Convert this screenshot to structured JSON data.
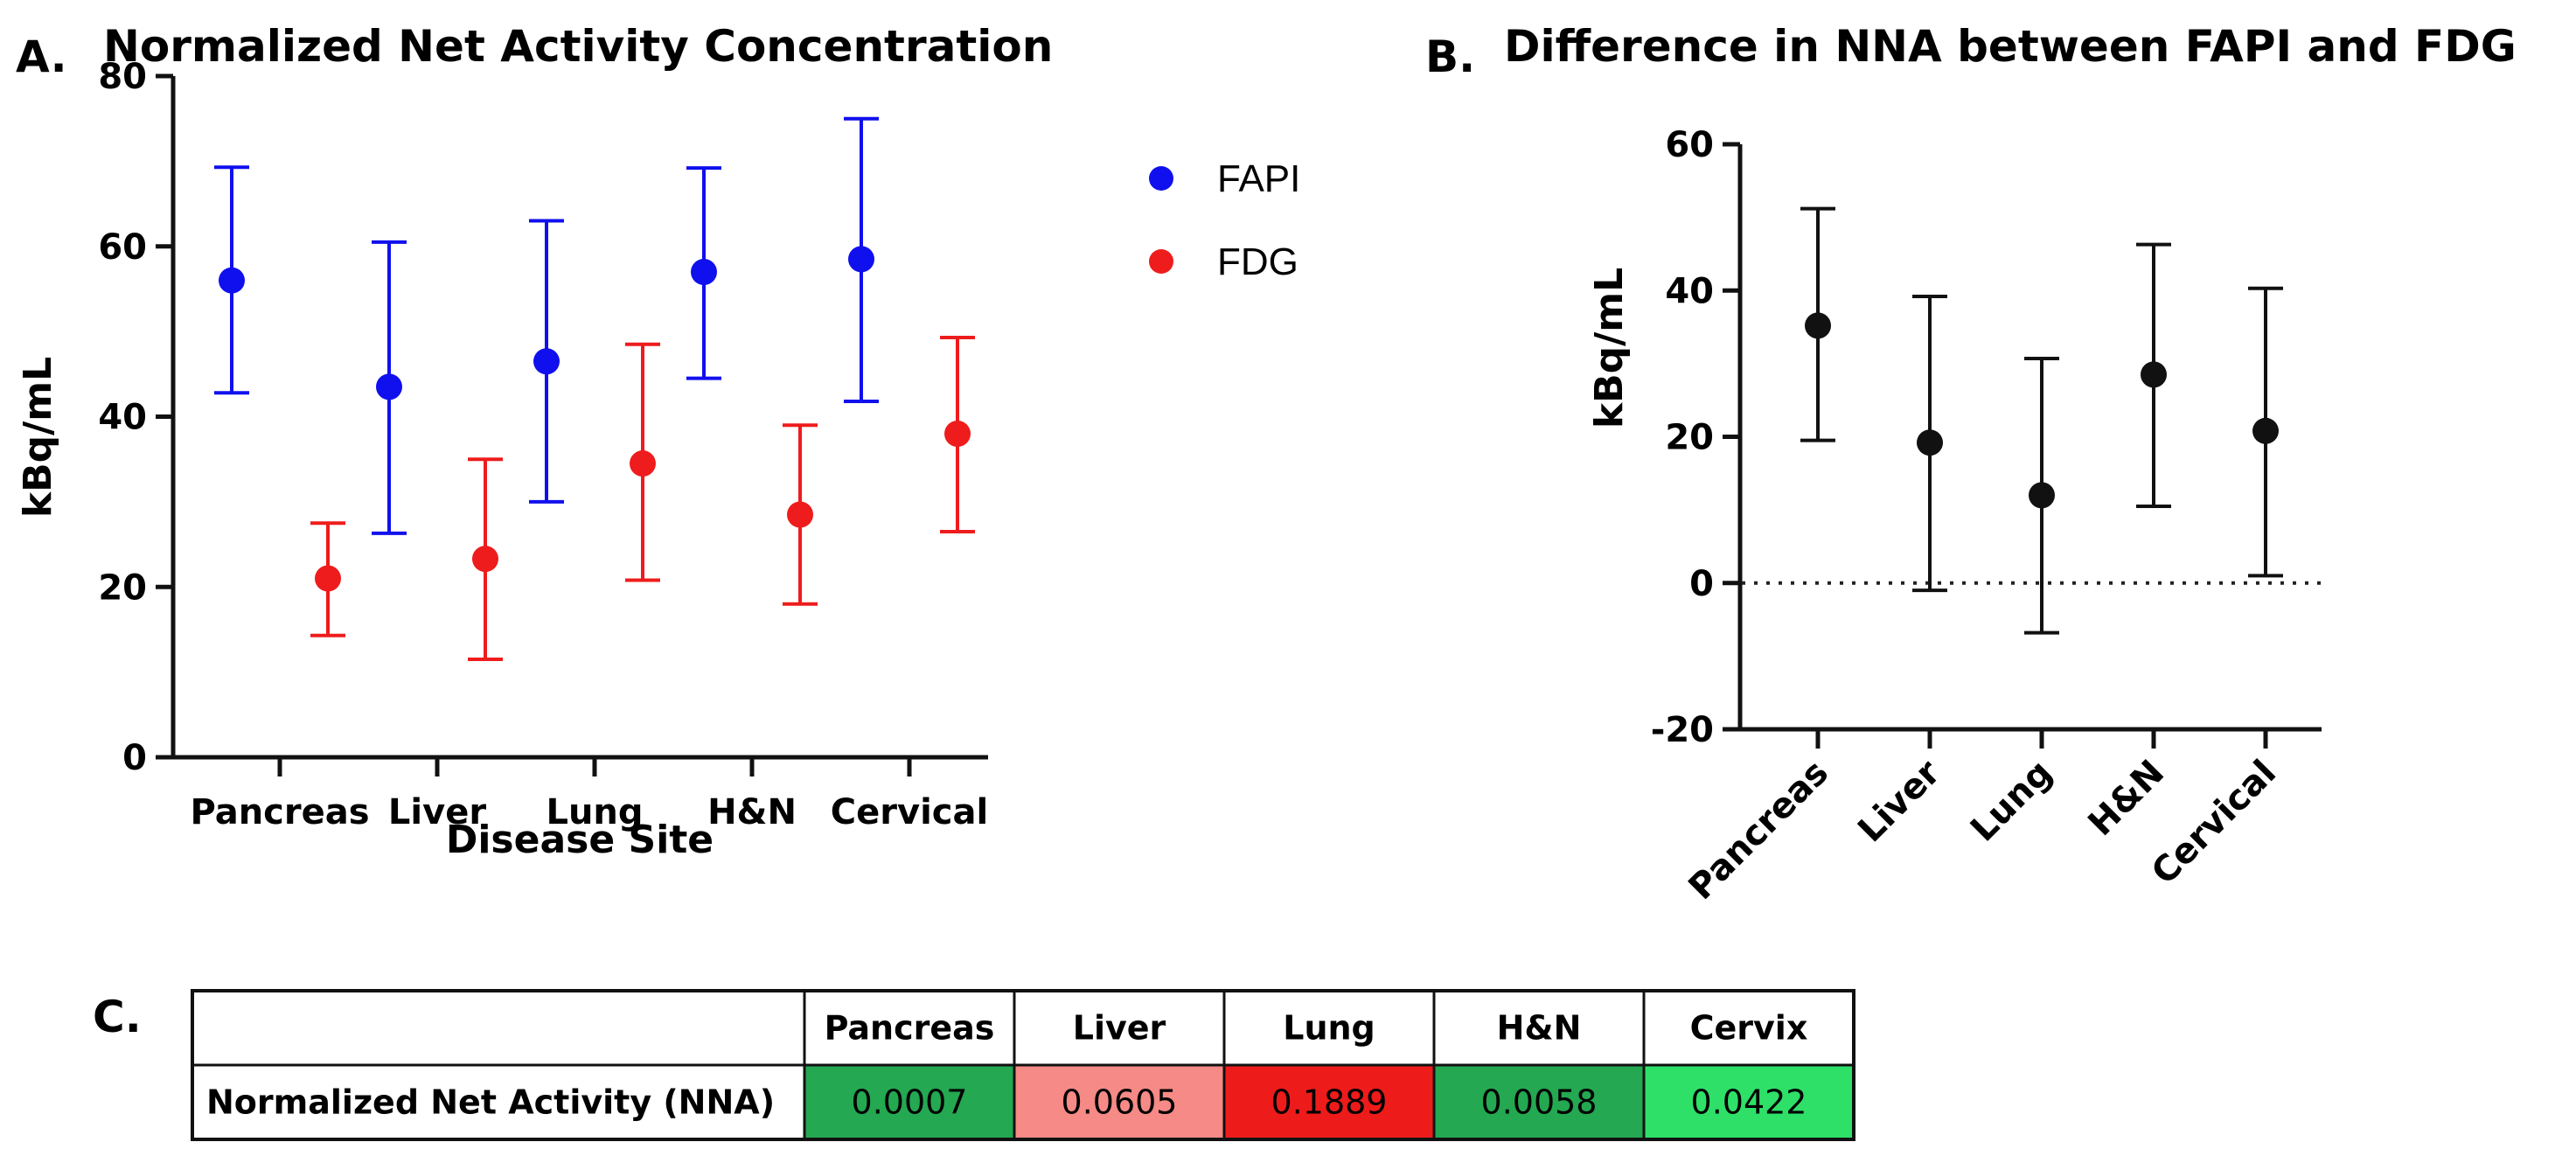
{
  "chart_data": [
    {
      "panel": "A.",
      "type": "scatter",
      "title": "Normalized Net Activity Concentration",
      "xlabel": "Disease Site",
      "ylabel": "kBq/mL",
      "ylim": [
        0,
        80
      ],
      "yticks": [
        0,
        20,
        40,
        60,
        80
      ],
      "categories": [
        "Pancreas",
        "Liver",
        "Lung",
        "H&N",
        "Cervical"
      ],
      "legend_position": "right",
      "series": [
        {
          "name": "FAPI",
          "color": "#1010ee",
          "values": [
            56,
            43.5,
            46.5,
            57,
            58.5
          ],
          "err_low": [
            42.8,
            26.3,
            30,
            44.5,
            41.8
          ],
          "err_high": [
            69.3,
            60.5,
            63,
            69.2,
            75
          ]
        },
        {
          "name": "FDG",
          "color": "#ee1c1c",
          "values": [
            21,
            23.3,
            34.5,
            28.5,
            38
          ],
          "err_low": [
            14.3,
            11.5,
            20.8,
            18,
            26.5
          ],
          "err_high": [
            27.5,
            35,
            48.5,
            39,
            49.3
          ]
        }
      ]
    },
    {
      "panel": "B.",
      "type": "scatter",
      "title": "Difference in NNA between FAPI and FDG",
      "xlabel": "",
      "ylabel": "kBq/mL",
      "ylim": [
        -20,
        60
      ],
      "yticks": [
        -20,
        0,
        20,
        40,
        60
      ],
      "reference_line": 0,
      "categories": [
        "Pancreas",
        "Liver",
        "Lung",
        "H&N",
        "Cervical"
      ],
      "series": [
        {
          "name": "Difference",
          "color": "#111111",
          "values": [
            35.2,
            19.2,
            12,
            28.5,
            20.8
          ],
          "err_low": [
            19.5,
            -1,
            -6.8,
            10.5,
            1
          ],
          "err_high": [
            51.2,
            39.2,
            30.7,
            46.3,
            40.3
          ]
        }
      ]
    },
    {
      "panel": "C.",
      "type": "table",
      "columns": [
        "Pancreas",
        "Liver",
        "Lung",
        "H&N",
        "Cervix"
      ],
      "rows": [
        {
          "label": "Normalized Net Activity (NNA)",
          "values": [
            "0.0007",
            "0.0605",
            "0.1889",
            "0.0058",
            "0.0422"
          ],
          "colors": [
            "#24a851",
            "#f58a86",
            "#ee1b1b",
            "#24a851",
            "#2ee068"
          ]
        }
      ]
    }
  ]
}
